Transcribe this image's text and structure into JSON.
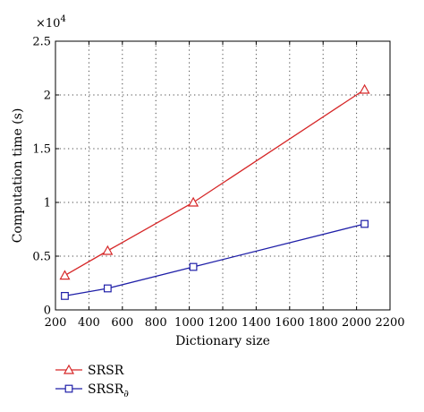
{
  "chart_data": {
    "type": "line",
    "title": "",
    "xlabel": "Dictionary size",
    "ylabel": "Computation time (s)",
    "y_multiplier_base": "×10",
    "y_multiplier_exp": "4",
    "xlim": [
      200,
      2200
    ],
    "ylim": [
      0,
      2.5
    ],
    "x_ticks": [
      "200",
      "400",
      "600",
      "800",
      "1000",
      "1200",
      "1400",
      "1600",
      "1800",
      "2000",
      "2200"
    ],
    "y_ticks": [
      "0",
      "0.5",
      "1",
      "1.5",
      "2",
      "2.5"
    ],
    "grid": true,
    "legend_position": "below-left",
    "series": [
      {
        "name": "SRSR",
        "color": "#d62728",
        "marker": "triangle",
        "x": [
          256,
          512,
          1024,
          2048
        ],
        "y": [
          0.32,
          0.55,
          1.0,
          2.05
        ]
      },
      {
        "name": "SRSR",
        "name_subscript": "∂",
        "color": "#1f1fa8",
        "marker": "square",
        "x": [
          256,
          512,
          1024,
          2048
        ],
        "y": [
          0.13,
          0.2,
          0.4,
          0.8
        ]
      }
    ]
  }
}
